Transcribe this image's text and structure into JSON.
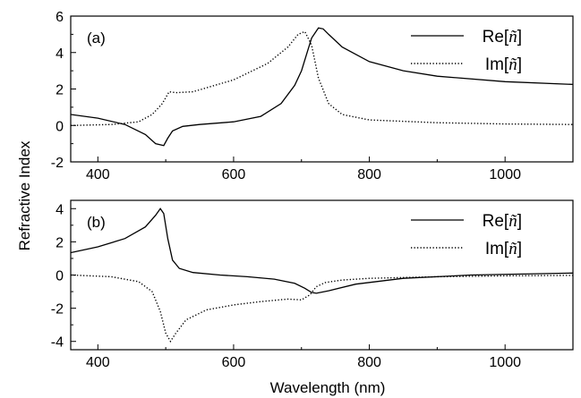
{
  "figure": {
    "ylabel": "Refractive Index",
    "xlabel": "Wavelength (nm)"
  },
  "chart_data": [
    {
      "type": "line",
      "panel_label": "(a)",
      "xlim": [
        360,
        1100
      ],
      "ylim": [
        -2,
        6
      ],
      "xticks": [
        400,
        600,
        800,
        1000
      ],
      "yticks": [
        -2,
        0,
        2,
        4,
        6
      ],
      "legend_position": "top-right",
      "series": [
        {
          "name": "Re[ñ]",
          "name_prefix": "Re",
          "style": "solid",
          "color": "#000000",
          "x": [
            360,
            400,
            440,
            470,
            485,
            497,
            503,
            510,
            525,
            550,
            600,
            640,
            670,
            690,
            700,
            710,
            715,
            725,
            732,
            740,
            760,
            800,
            850,
            900,
            1000,
            1100
          ],
          "y": [
            0.6,
            0.4,
            0.05,
            -0.5,
            -1.0,
            -1.1,
            -0.7,
            -0.3,
            -0.05,
            0.05,
            0.2,
            0.5,
            1.2,
            2.2,
            3.0,
            4.2,
            4.8,
            5.35,
            5.3,
            5.0,
            4.3,
            3.5,
            3.0,
            2.7,
            2.4,
            2.25
          ]
        },
        {
          "name": "Im[ñ]",
          "name_prefix": "Im",
          "style": "dotted",
          "color": "#000000",
          "x": [
            360,
            420,
            460,
            480,
            495,
            505,
            515,
            540,
            600,
            650,
            680,
            695,
            705,
            715,
            725,
            740,
            760,
            800,
            900,
            1000,
            1100
          ],
          "y": [
            0.0,
            0.05,
            0.2,
            0.6,
            1.2,
            1.85,
            1.8,
            1.85,
            2.5,
            3.4,
            4.3,
            5.0,
            5.15,
            4.4,
            2.6,
            1.2,
            0.6,
            0.3,
            0.15,
            0.08,
            0.05
          ]
        }
      ]
    },
    {
      "type": "line",
      "panel_label": "(b)",
      "xlim": [
        360,
        1100
      ],
      "ylim": [
        -4.5,
        4.5
      ],
      "xticks": [
        400,
        600,
        800,
        1000
      ],
      "yticks": [
        -4,
        -2,
        0,
        2,
        4
      ],
      "legend_position": "top-right",
      "series": [
        {
          "name": "Re[ñ]",
          "name_prefix": "Re",
          "style": "solid",
          "color": "#000000",
          "x": [
            360,
            400,
            440,
            470,
            485,
            492,
            497,
            503,
            510,
            520,
            540,
            580,
            620,
            660,
            690,
            705,
            715,
            722,
            740,
            780,
            850,
            950,
            1100
          ],
          "y": [
            1.35,
            1.7,
            2.2,
            2.9,
            3.6,
            4.0,
            3.7,
            2.2,
            0.9,
            0.4,
            0.15,
            0.0,
            -0.1,
            -0.25,
            -0.5,
            -0.8,
            -1.05,
            -1.1,
            -0.95,
            -0.55,
            -0.2,
            0.0,
            0.12
          ]
        },
        {
          "name": "Im[ñ]",
          "name_prefix": "Im",
          "style": "dotted",
          "color": "#000000",
          "x": [
            360,
            420,
            460,
            480,
            492,
            500,
            507,
            515,
            530,
            560,
            600,
            640,
            680,
            700,
            712,
            722,
            735,
            760,
            800,
            900,
            1000,
            1100
          ],
          "y": [
            0.0,
            -0.1,
            -0.4,
            -1.0,
            -2.2,
            -3.5,
            -4.0,
            -3.5,
            -2.7,
            -2.1,
            -1.8,
            -1.6,
            -1.45,
            -1.5,
            -1.2,
            -0.7,
            -0.45,
            -0.3,
            -0.2,
            -0.1,
            -0.05,
            -0.02
          ]
        }
      ]
    }
  ]
}
